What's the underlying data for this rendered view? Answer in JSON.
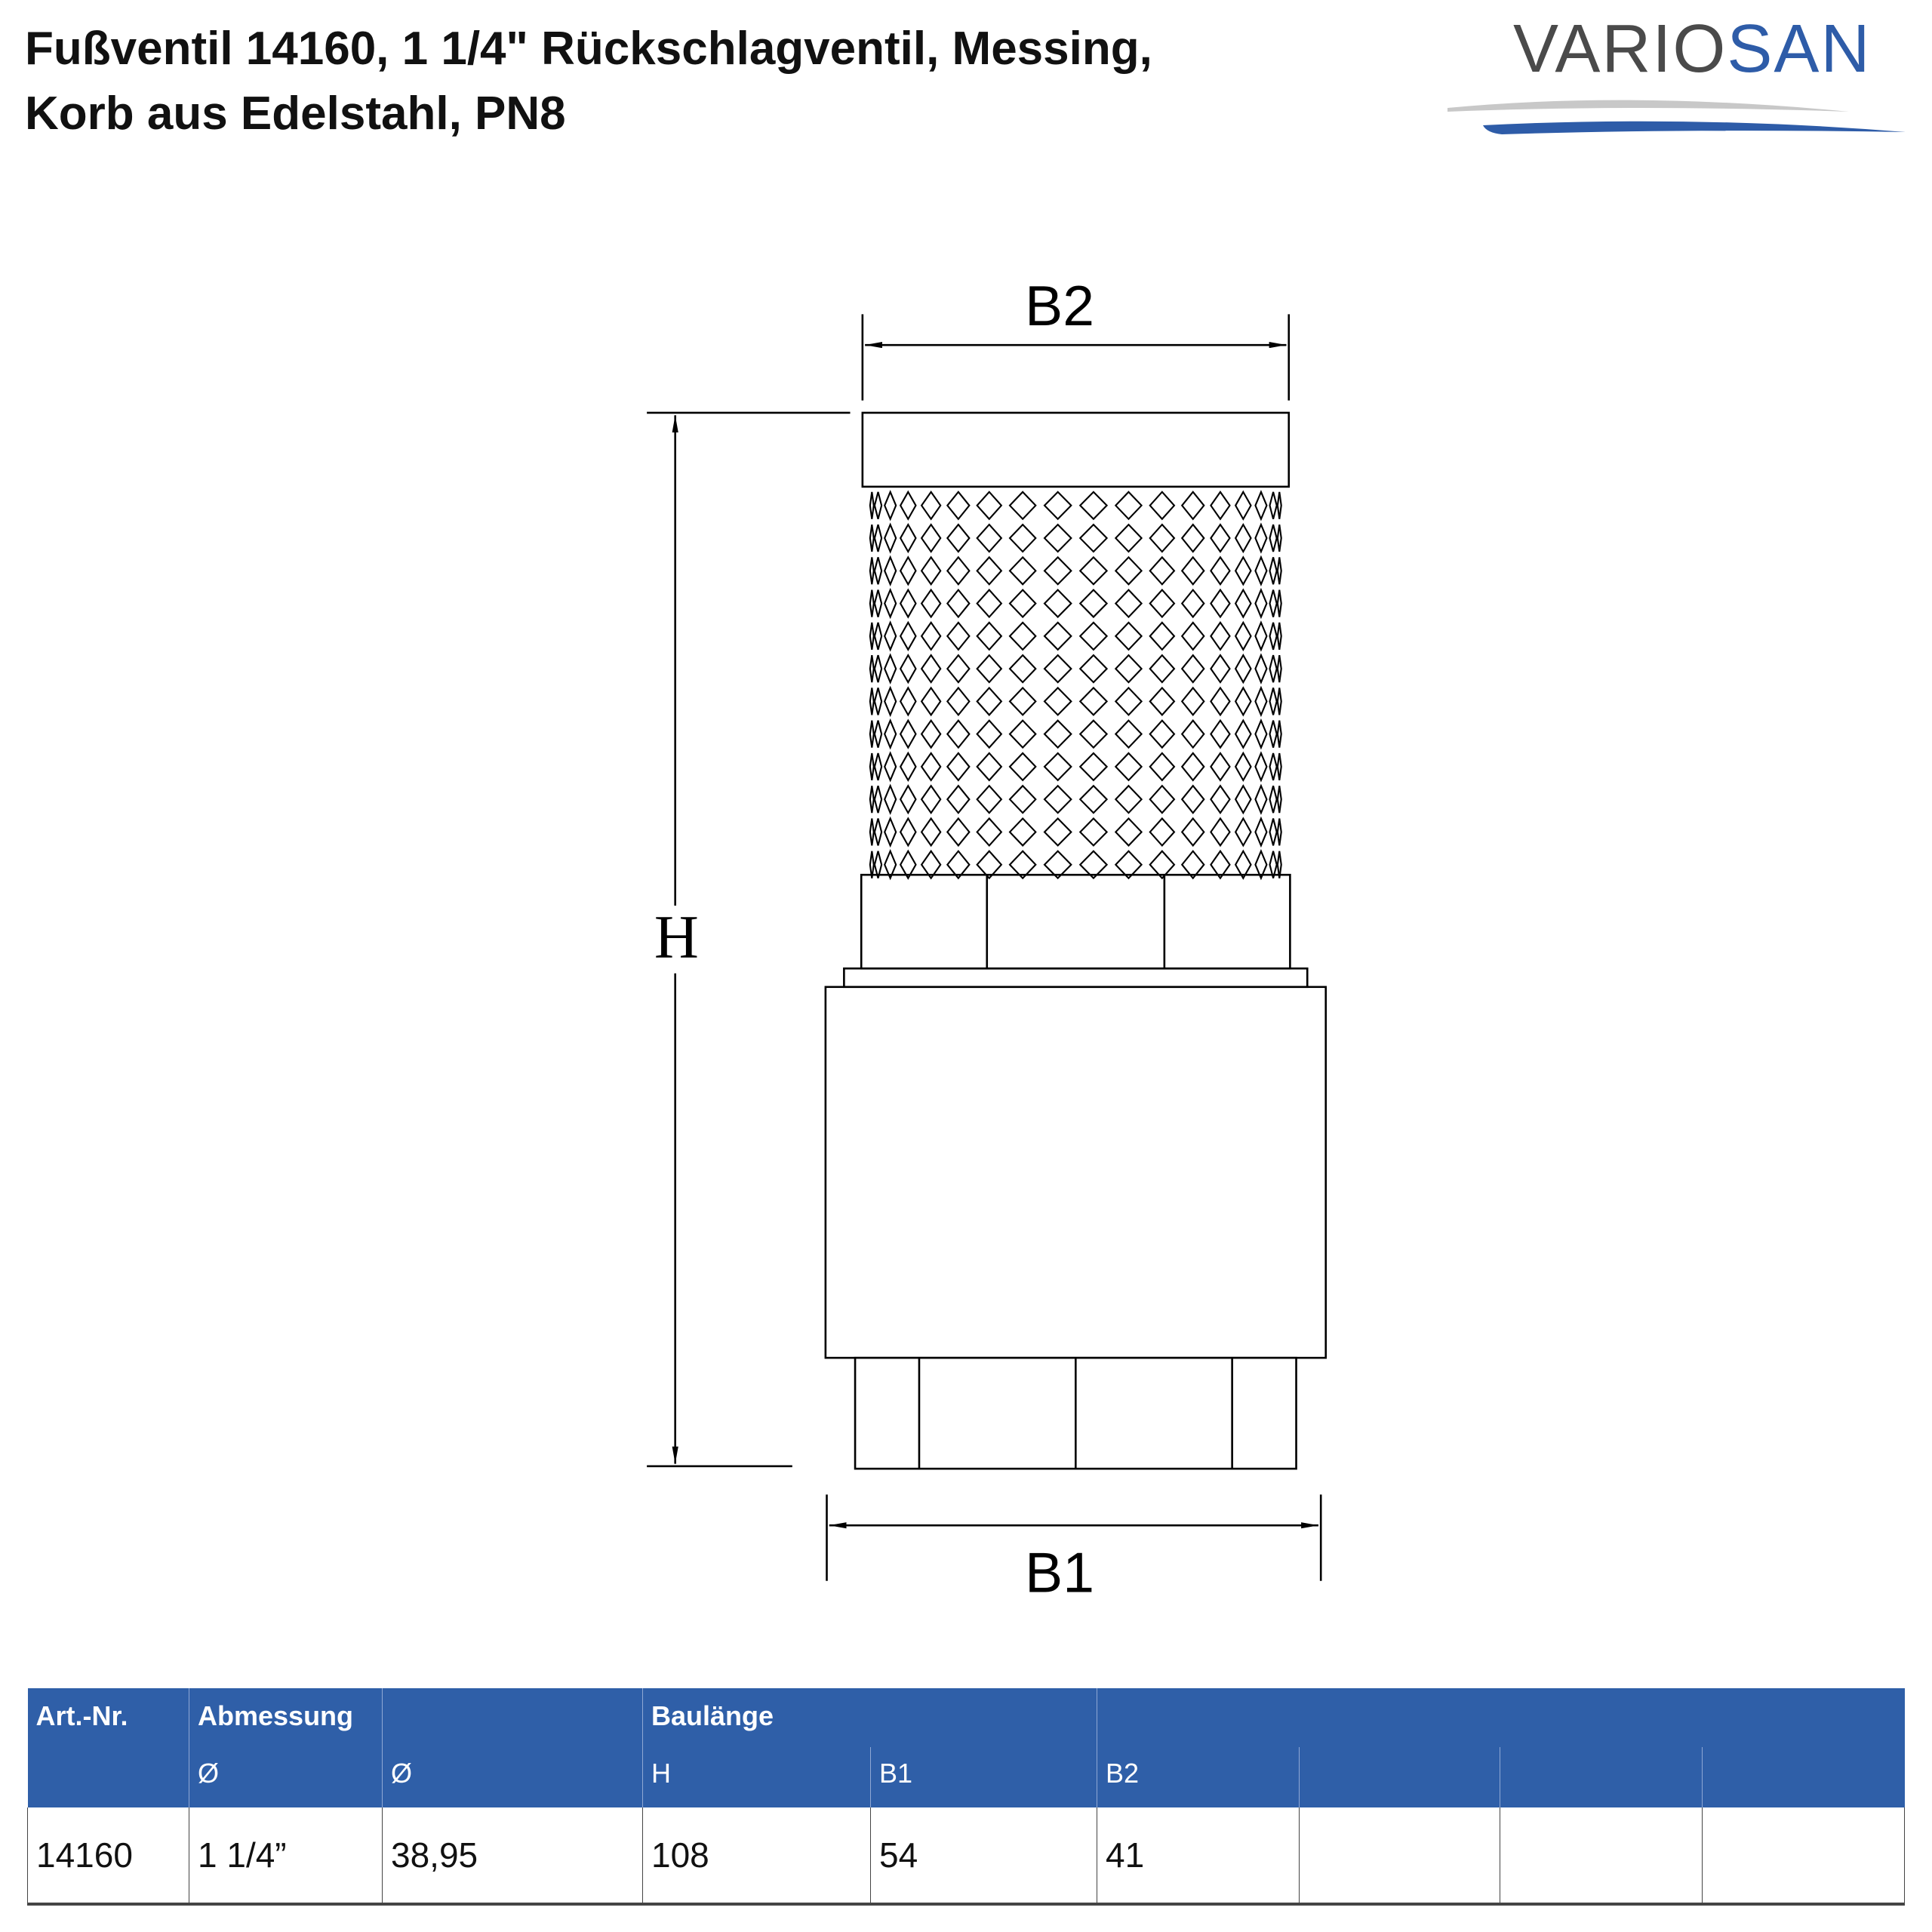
{
  "title": {
    "line1": "Fußventil 14160, 1 1/4\" Rückschlagventil, Messing,",
    "line2": "Korb aus Edelstahl, PN8"
  },
  "logo": {
    "part1": "VARIO",
    "part2": "SAN",
    "color_gray": "#4a4a4a",
    "color_blue": "#2e5ca8"
  },
  "drawing": {
    "label_b2": "B2",
    "label_h": "H",
    "label_b1": "B1"
  },
  "table": {
    "header_color": "#2f5fa8",
    "header_row1": [
      "Art.-Nr.",
      "Abmessung",
      "",
      "Baulänge",
      "",
      "",
      "",
      "",
      ""
    ],
    "header_row2": [
      "",
      "Ø",
      "Ø",
      "H",
      "B1",
      "B2",
      "",
      "",
      ""
    ],
    "rows": [
      [
        "14160",
        "1 1/4”",
        "38,95",
        "108",
        "54",
        "41",
        "",
        "",
        ""
      ]
    ]
  }
}
